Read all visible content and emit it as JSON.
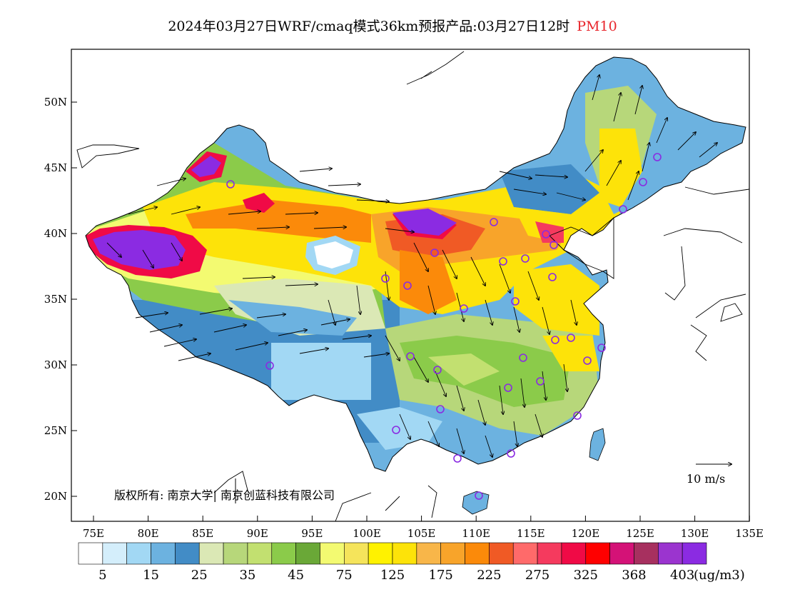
{
  "title": {
    "main": "2024年03月27日WRF/cmaq模式36km预报产品:03月27日12时",
    "variable": "PM10",
    "variable_color": "#e8252b"
  },
  "map": {
    "lat_labels": [
      "50N",
      "45N",
      "40N",
      "35N",
      "30N",
      "25N",
      "20N"
    ],
    "lon_labels": [
      "75E",
      "80E",
      "85E",
      "90E",
      "95E",
      "100E",
      "105E",
      "110E",
      "115E",
      "120E",
      "125E",
      "130E",
      "135E"
    ],
    "copyright": "版权所有: 南京大学| 南京创蓝科技有限公司",
    "vector_reference": "10 m/s",
    "station_marker_color": "#8a2be2"
  },
  "colorbar": {
    "colors": [
      "#ffffff",
      "#d4eefb",
      "#a2d8f4",
      "#6cb2e0",
      "#428cc6",
      "#dbe8b5",
      "#b7d77a",
      "#c2e070",
      "#8bcb4a",
      "#6aa837",
      "#f3fa71",
      "#f5e45b",
      "#fff200",
      "#fde309",
      "#f8b649",
      "#f8a42a",
      "#fb8a0a",
      "#f05a25",
      "#ff6a6a",
      "#f53a5e",
      "#f00a46",
      "#ff0000",
      "#d41277",
      "#a7305f",
      "#9b34cf",
      "#8b2be2"
    ],
    "labels": [
      "5",
      "15",
      "25",
      "35",
      "45",
      "75",
      "125",
      "175",
      "225",
      "275",
      "325",
      "368",
      "403"
    ],
    "unit": "(ug/m3)"
  }
}
